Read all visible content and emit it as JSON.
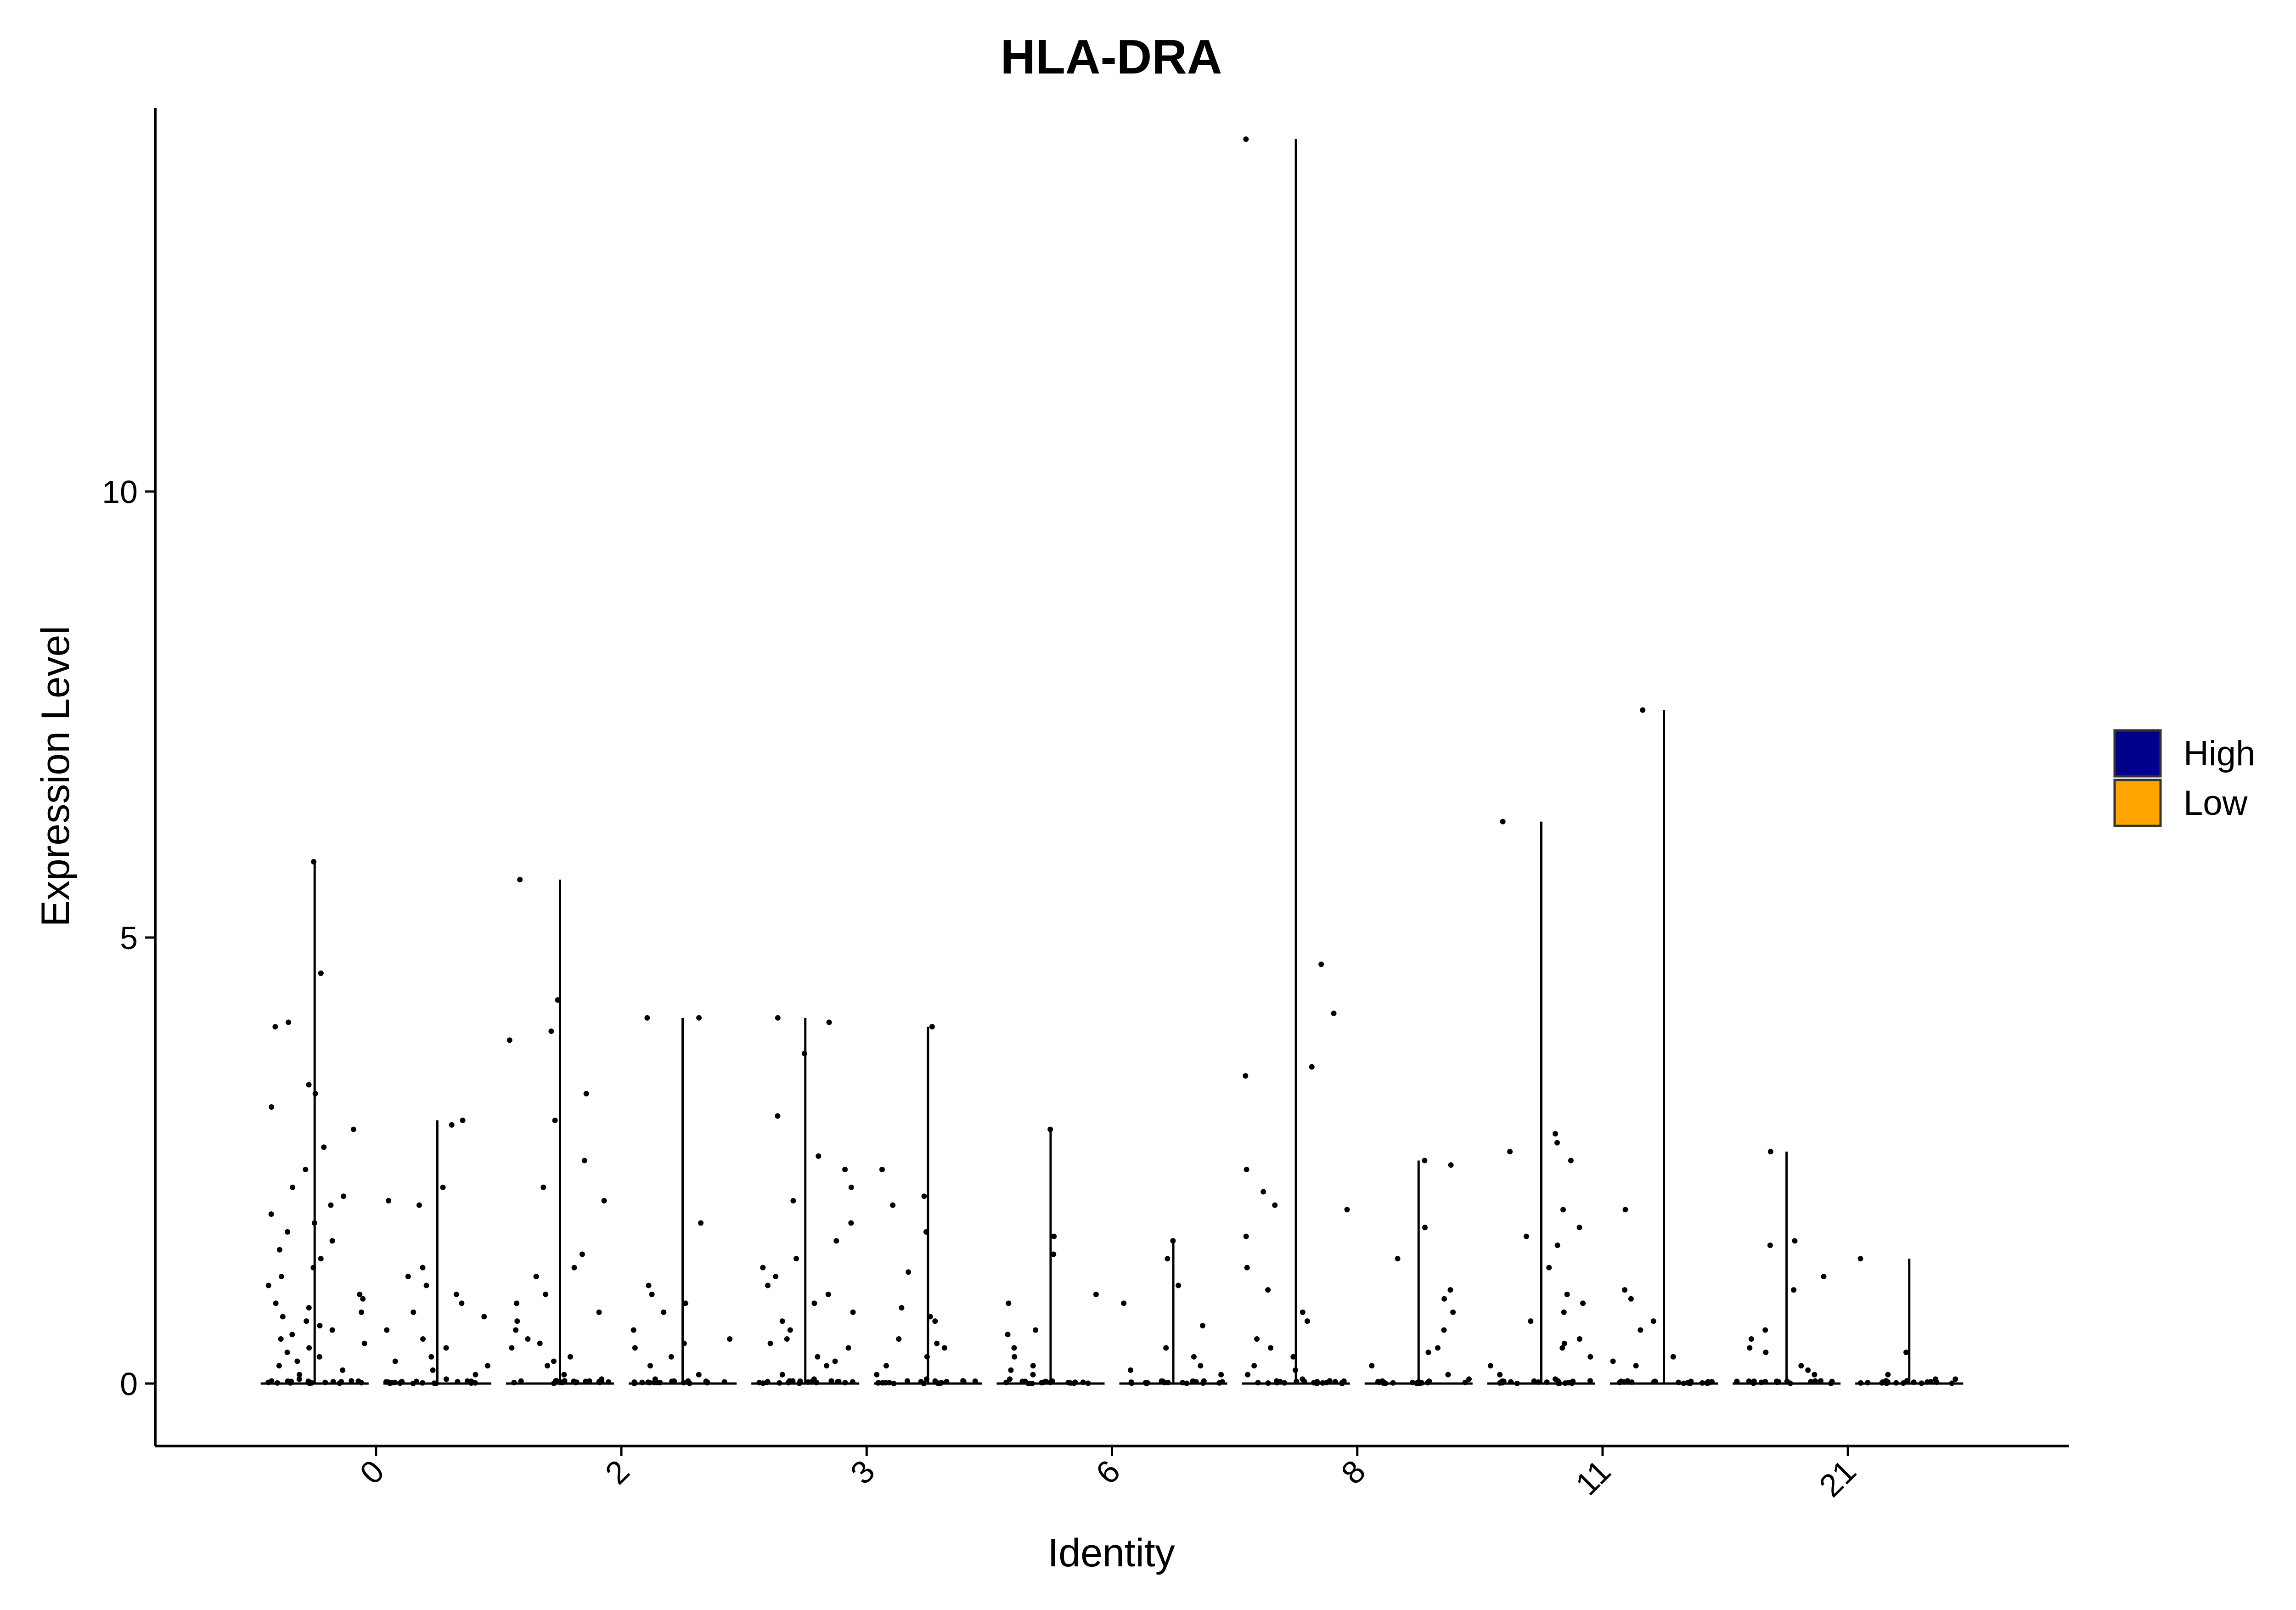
{
  "colors": {
    "background": "#ffffff",
    "axis": "#000000",
    "point": "#000000",
    "High": "#00008b",
    "Low": "#ffa500"
  },
  "chart_data": {
    "type": "violin",
    "title": "HLA-DRA",
    "xlabel": "Identity",
    "ylabel": "Expression Level",
    "ylim": [
      -0.7,
      14.3
    ],
    "yticks": [
      0,
      5,
      10
    ],
    "categories": [
      "0",
      "2",
      "3",
      "6",
      "8",
      "11",
      "21"
    ],
    "legend": {
      "position": "right",
      "items": [
        {
          "label": "High",
          "color": "#00008b"
        },
        {
          "label": "Low",
          "color": "#ffa500"
        }
      ]
    },
    "grid": false,
    "series": [
      {
        "name": "High",
        "max_values": [
          5.85,
          5.65,
          4.1,
          2.85,
          13.95,
          6.3,
          2.6
        ],
        "points": [
          [
            5.85,
            4.6,
            4.0,
            4.05,
            3.35,
            3.25,
            3.1,
            2.85,
            2.65,
            2.4,
            2.2,
            2.1,
            2.0,
            1.9,
            1.8,
            1.7,
            1.6,
            1.5,
            1.4,
            1.3,
            1.2,
            1.1,
            1.0,
            0.95,
            0.9,
            0.85,
            0.8,
            0.75,
            0.7,
            0.65,
            0.6,
            0.55,
            0.5,
            0.45,
            0.4,
            0.35,
            0.3,
            0.25,
            0.2,
            0.15,
            0.1,
            0.05
          ],
          [
            5.65,
            4.3,
            3.95,
            3.85,
            3.25,
            2.95,
            2.5,
            2.2,
            2.05,
            1.45,
            1.3,
            1.2,
            1.0,
            0.9,
            0.8,
            0.7,
            0.6,
            0.5,
            0.45,
            0.4,
            0.3,
            0.25,
            0.2,
            0.1,
            0.05
          ],
          [
            4.1,
            4.05,
            3.7,
            3.0,
            2.55,
            2.4,
            2.2,
            2.05,
            1.8,
            1.6,
            1.4,
            1.3,
            1.2,
            1.1,
            1.0,
            0.9,
            0.8,
            0.7,
            0.6,
            0.5,
            0.45,
            0.4,
            0.3,
            0.25,
            0.2,
            0.1,
            0.05
          ],
          [
            2.85,
            1.65,
            1.45,
            1.0,
            0.9,
            0.6,
            0.55,
            0.4,
            0.3,
            0.2,
            0.15,
            0.1,
            0.05
          ],
          [
            13.95,
            4.7,
            4.15,
            3.55,
            3.45,
            2.4,
            2.15,
            2.0,
            1.95,
            1.65,
            1.3,
            1.05,
            0.8,
            0.7,
            0.5,
            0.4,
            0.3,
            0.2,
            0.15,
            0.1,
            0.05
          ],
          [
            6.3,
            2.8,
            2.7,
            2.6,
            2.5,
            1.95,
            1.75,
            1.65,
            1.55,
            1.3,
            1.0,
            0.9,
            0.8,
            0.7,
            0.5,
            0.45,
            0.4,
            0.3,
            0.2,
            0.1,
            0.05
          ],
          [
            2.6,
            1.6,
            1.55,
            1.2,
            1.05,
            0.6,
            0.5,
            0.4,
            0.35,
            0.2,
            0.15,
            0.1
          ]
        ]
      },
      {
        "name": "Low",
        "max_values": [
          2.95,
          4.1,
          4.0,
          1.6,
          2.5,
          7.55,
          1.4
        ],
        "points": [
          [
            2.95,
            2.9,
            2.2,
            2.05,
            2.0,
            1.3,
            1.2,
            1.1,
            1.0,
            0.9,
            0.8,
            0.75,
            0.6,
            0.5,
            0.4,
            0.3,
            0.25,
            0.2,
            0.15,
            0.1,
            0.05
          ],
          [
            4.1,
            4.1,
            1.8,
            1.1,
            1.0,
            0.9,
            0.8,
            0.6,
            0.5,
            0.45,
            0.4,
            0.3,
            0.2,
            0.1,
            0.05
          ],
          [
            4.0,
            2.4,
            2.1,
            2.0,
            1.7,
            1.25,
            0.85,
            0.75,
            0.7,
            0.5,
            0.45,
            0.4,
            0.3,
            0.2,
            0.1,
            0.05
          ],
          [
            1.6,
            1.4,
            1.1,
            0.9,
            0.65,
            0.4,
            0.3,
            0.2,
            0.15,
            0.1
          ],
          [
            2.5,
            2.45,
            1.75,
            1.4,
            1.05,
            0.95,
            0.8,
            0.6,
            0.4,
            0.35,
            0.2,
            0.1,
            0.05
          ],
          [
            7.55,
            1.95,
            1.05,
            0.95,
            0.7,
            0.6,
            0.3,
            0.25,
            0.2
          ],
          [
            1.4,
            0.35,
            0.1,
            0.05,
            0.05
          ]
        ]
      }
    ]
  }
}
